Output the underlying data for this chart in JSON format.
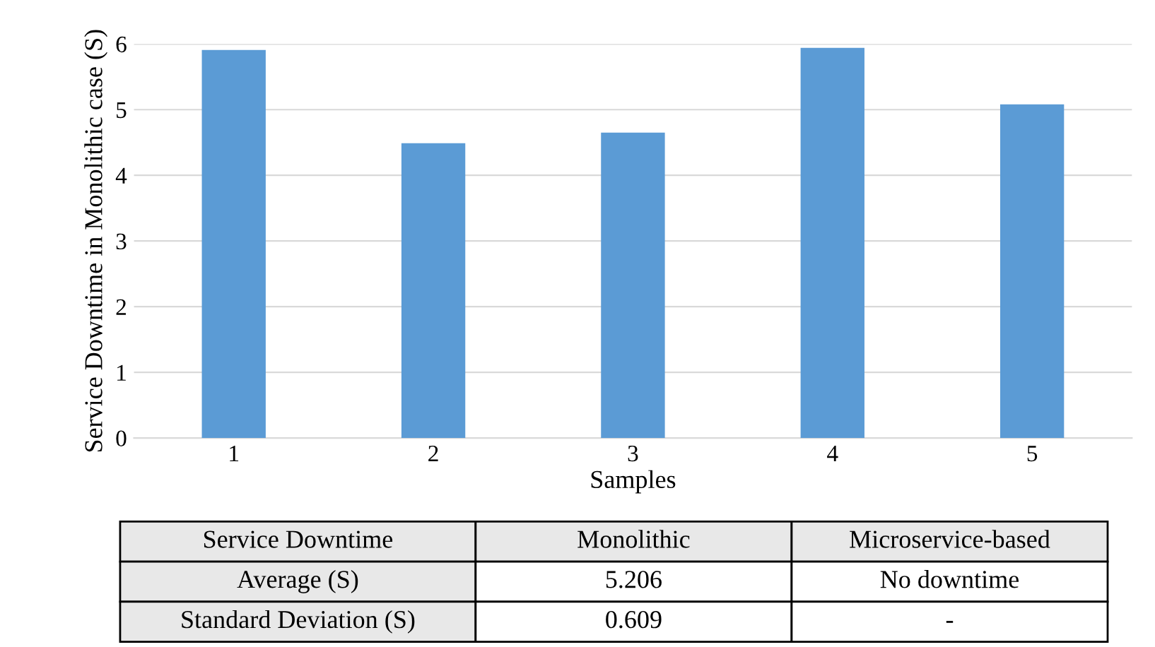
{
  "chart_data": {
    "type": "bar",
    "xlabel": "Samples",
    "ylabel": "Service Downtime in Monolithic case (S)",
    "categories": [
      "1",
      "2",
      "3",
      "4",
      "5"
    ],
    "values": [
      5.91,
      4.49,
      4.65,
      5.94,
      5.08
    ],
    "color": "#5b9bd5",
    "ylim": [
      0,
      6
    ],
    "yticks": [
      0,
      1,
      2,
      3,
      4,
      5,
      6
    ],
    "grid": "y",
    "annotations": [
      "Service Downtime",
      "Monolithic",
      "Microservice-based",
      "Average (S)",
      "5.206",
      "No downtime",
      "Standard Deviation (S)",
      "0.609",
      "-"
    ]
  }
}
